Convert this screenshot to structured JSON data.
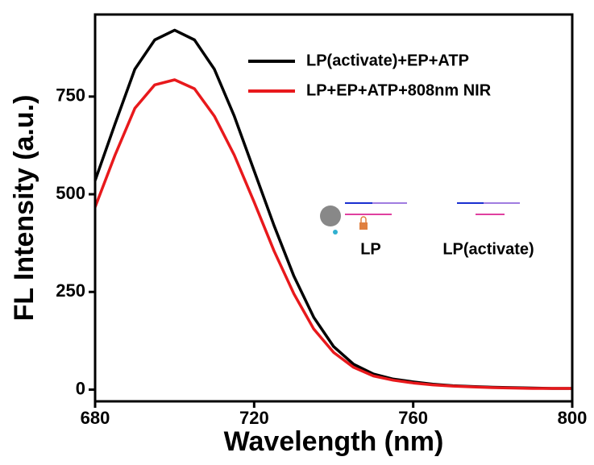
{
  "chart_data": {
    "type": "line",
    "x_label": "Wavelength (nm)",
    "y_label": "FL Intensity (a.u.)",
    "x": [
      680,
      685,
      690,
      695,
      700,
      705,
      710,
      715,
      720,
      725,
      730,
      735,
      740,
      745,
      750,
      755,
      760,
      765,
      770,
      775,
      780,
      785,
      790,
      795,
      800
    ],
    "series": [
      {
        "name": "LP(activate)+EP+ATP",
        "color": "#000000",
        "values": [
          535,
          680,
          820,
          895,
          920,
          895,
          820,
          700,
          560,
          420,
          290,
          185,
          110,
          65,
          40,
          27,
          20,
          14,
          10,
          8,
          6,
          5,
          4,
          3,
          3
        ]
      },
      {
        "name": "LP+EP+ATP+808nm NIR",
        "color": "#e8191c",
        "values": [
          467,
          600,
          720,
          780,
          793,
          770,
          700,
          600,
          480,
          355,
          245,
          155,
          95,
          57,
          35,
          24,
          17,
          12,
          9,
          7,
          5,
          4,
          3,
          3,
          3
        ]
      }
    ],
    "xlim": [
      680,
      800
    ],
    "xticks": [
      680,
      720,
      760,
      800
    ],
    "ylim": [
      -30,
      960
    ],
    "yticks": [
      0,
      250,
      500,
      750
    ],
    "legend": "upper right",
    "annotations": [
      "LP",
      "LP(activate)"
    ]
  }
}
